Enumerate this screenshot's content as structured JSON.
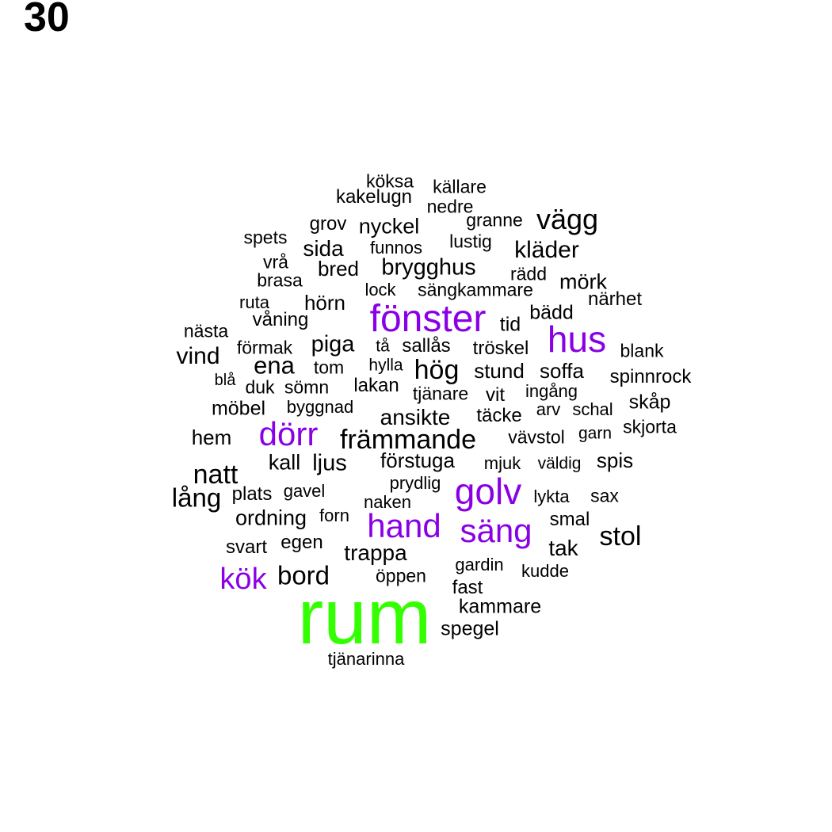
{
  "page_number": "30",
  "colors": {
    "top": "#33ff00",
    "high": "#8a00e6",
    "normal": "#000000"
  },
  "words": [
    {
      "text": "rum",
      "tier": "top"
    },
    {
      "text": "fönster",
      "tier": "high"
    },
    {
      "text": "hus",
      "tier": "high"
    },
    {
      "text": "dörr",
      "tier": "high"
    },
    {
      "text": "golv",
      "tier": "high"
    },
    {
      "text": "hand",
      "tier": "high"
    },
    {
      "text": "säng",
      "tier": "high"
    },
    {
      "text": "kök",
      "tier": "high"
    },
    {
      "text": "köksa",
      "tier": "normal"
    },
    {
      "text": "källare",
      "tier": "normal"
    },
    {
      "text": "kakelugn",
      "tier": "normal"
    },
    {
      "text": "nedre",
      "tier": "normal"
    },
    {
      "text": "granne",
      "tier": "normal"
    },
    {
      "text": "vägg",
      "tier": "normal"
    },
    {
      "text": "grov",
      "tier": "normal"
    },
    {
      "text": "nyckel",
      "tier": "normal"
    },
    {
      "text": "spets",
      "tier": "normal"
    },
    {
      "text": "lustig",
      "tier": "normal"
    },
    {
      "text": "sida",
      "tier": "normal"
    },
    {
      "text": "funnos",
      "tier": "normal"
    },
    {
      "text": "kläder",
      "tier": "normal"
    },
    {
      "text": "vrå",
      "tier": "normal"
    },
    {
      "text": "bred",
      "tier": "normal"
    },
    {
      "text": "brygghus",
      "tier": "normal"
    },
    {
      "text": "rädd",
      "tier": "normal"
    },
    {
      "text": "brasa",
      "tier": "normal"
    },
    {
      "text": "mörk",
      "tier": "normal"
    },
    {
      "text": "lock",
      "tier": "normal"
    },
    {
      "text": "sängkammare",
      "tier": "normal"
    },
    {
      "text": "ruta",
      "tier": "normal"
    },
    {
      "text": "hörn",
      "tier": "normal"
    },
    {
      "text": "närhet",
      "tier": "normal"
    },
    {
      "text": "våning",
      "tier": "normal"
    },
    {
      "text": "bädd",
      "tier": "normal"
    },
    {
      "text": "nästa",
      "tier": "normal"
    },
    {
      "text": "tid",
      "tier": "normal"
    },
    {
      "text": "förmak",
      "tier": "normal"
    },
    {
      "text": "piga",
      "tier": "normal"
    },
    {
      "text": "tå",
      "tier": "normal"
    },
    {
      "text": "sallås",
      "tier": "normal"
    },
    {
      "text": "tröskel",
      "tier": "normal"
    },
    {
      "text": "blank",
      "tier": "normal"
    },
    {
      "text": "vind",
      "tier": "normal"
    },
    {
      "text": "ena",
      "tier": "normal"
    },
    {
      "text": "tom",
      "tier": "normal"
    },
    {
      "text": "hylla",
      "tier": "normal"
    },
    {
      "text": "hög",
      "tier": "normal"
    },
    {
      "text": "stund",
      "tier": "normal"
    },
    {
      "text": "soffa",
      "tier": "normal"
    },
    {
      "text": "blå",
      "tier": "normal"
    },
    {
      "text": "spinnrock",
      "tier": "normal"
    },
    {
      "text": "duk",
      "tier": "normal"
    },
    {
      "text": "sömn",
      "tier": "normal"
    },
    {
      "text": "lakan",
      "tier": "normal"
    },
    {
      "text": "tjänare",
      "tier": "normal"
    },
    {
      "text": "vit",
      "tier": "normal"
    },
    {
      "text": "ingång",
      "tier": "normal"
    },
    {
      "text": "skåp",
      "tier": "normal"
    },
    {
      "text": "möbel",
      "tier": "normal"
    },
    {
      "text": "byggnad",
      "tier": "normal"
    },
    {
      "text": "ansikte",
      "tier": "normal"
    },
    {
      "text": "täcke",
      "tier": "normal"
    },
    {
      "text": "arv",
      "tier": "normal"
    },
    {
      "text": "schal",
      "tier": "normal"
    },
    {
      "text": "skjorta",
      "tier": "normal"
    },
    {
      "text": "hem",
      "tier": "normal"
    },
    {
      "text": "främmande",
      "tier": "normal"
    },
    {
      "text": "vävstol",
      "tier": "normal"
    },
    {
      "text": "garn",
      "tier": "normal"
    },
    {
      "text": "kall",
      "tier": "normal"
    },
    {
      "text": "ljus",
      "tier": "normal"
    },
    {
      "text": "förstuga",
      "tier": "normal"
    },
    {
      "text": "mjuk",
      "tier": "normal"
    },
    {
      "text": "väldig",
      "tier": "normal"
    },
    {
      "text": "spis",
      "tier": "normal"
    },
    {
      "text": "natt",
      "tier": "normal"
    },
    {
      "text": "prydlig",
      "tier": "normal"
    },
    {
      "text": "lång",
      "tier": "normal"
    },
    {
      "text": "plats",
      "tier": "normal"
    },
    {
      "text": "gavel",
      "tier": "normal"
    },
    {
      "text": "naken",
      "tier": "normal"
    },
    {
      "text": "lykta",
      "tier": "normal"
    },
    {
      "text": "sax",
      "tier": "normal"
    },
    {
      "text": "ordning",
      "tier": "normal"
    },
    {
      "text": "forn",
      "tier": "normal"
    },
    {
      "text": "smal",
      "tier": "normal"
    },
    {
      "text": "stol",
      "tier": "normal"
    },
    {
      "text": "svart",
      "tier": "normal"
    },
    {
      "text": "egen",
      "tier": "normal"
    },
    {
      "text": "trappa",
      "tier": "normal"
    },
    {
      "text": "tak",
      "tier": "normal"
    },
    {
      "text": "gardin",
      "tier": "normal"
    },
    {
      "text": "kudde",
      "tier": "normal"
    },
    {
      "text": "bord",
      "tier": "normal"
    },
    {
      "text": "öppen",
      "tier": "normal"
    },
    {
      "text": "fast",
      "tier": "normal"
    },
    {
      "text": "kammare",
      "tier": "normal"
    },
    {
      "text": "spegel",
      "tier": "normal"
    },
    {
      "text": "tjänarinna",
      "tier": "normal"
    }
  ]
}
